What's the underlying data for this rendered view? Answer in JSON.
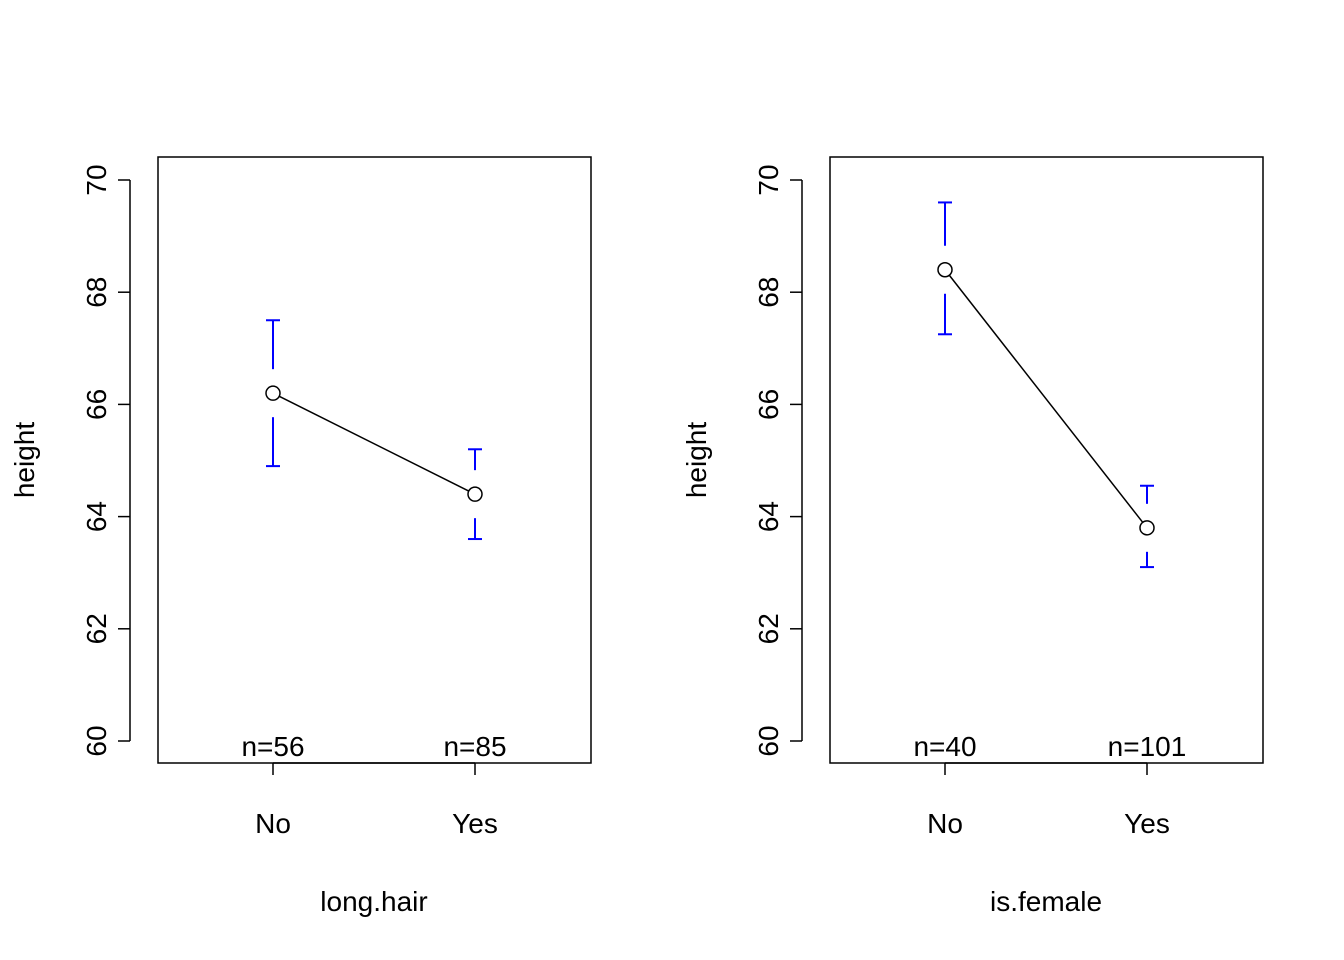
{
  "chart_data": [
    {
      "type": "line",
      "xlabel": "long.hair",
      "ylabel": "height",
      "categories": [
        "No",
        "Yes"
      ],
      "values": [
        66.2,
        64.4
      ],
      "ci_lower": [
        64.9,
        63.6
      ],
      "ci_upper": [
        67.5,
        65.2
      ],
      "n_labels": [
        "n=56",
        "n=85"
      ],
      "ylim": [
        60,
        70
      ],
      "yticks": [
        "60",
        "62",
        "64",
        "66",
        "68",
        "70"
      ],
      "error_bar_color": "#0000ff",
      "line_color": "#000000"
    },
    {
      "type": "line",
      "xlabel": "is.female",
      "ylabel": "height",
      "categories": [
        "No",
        "Yes"
      ],
      "values": [
        68.4,
        63.8
      ],
      "ci_lower": [
        67.25,
        63.1
      ],
      "ci_upper": [
        69.6,
        64.55
      ],
      "n_labels": [
        "n=40",
        "n=101"
      ],
      "ylim": [
        60,
        70
      ],
      "yticks": [
        "60",
        "62",
        "64",
        "66",
        "68",
        "70"
      ],
      "error_bar_color": "#0000ff",
      "line_color": "#000000"
    }
  ]
}
